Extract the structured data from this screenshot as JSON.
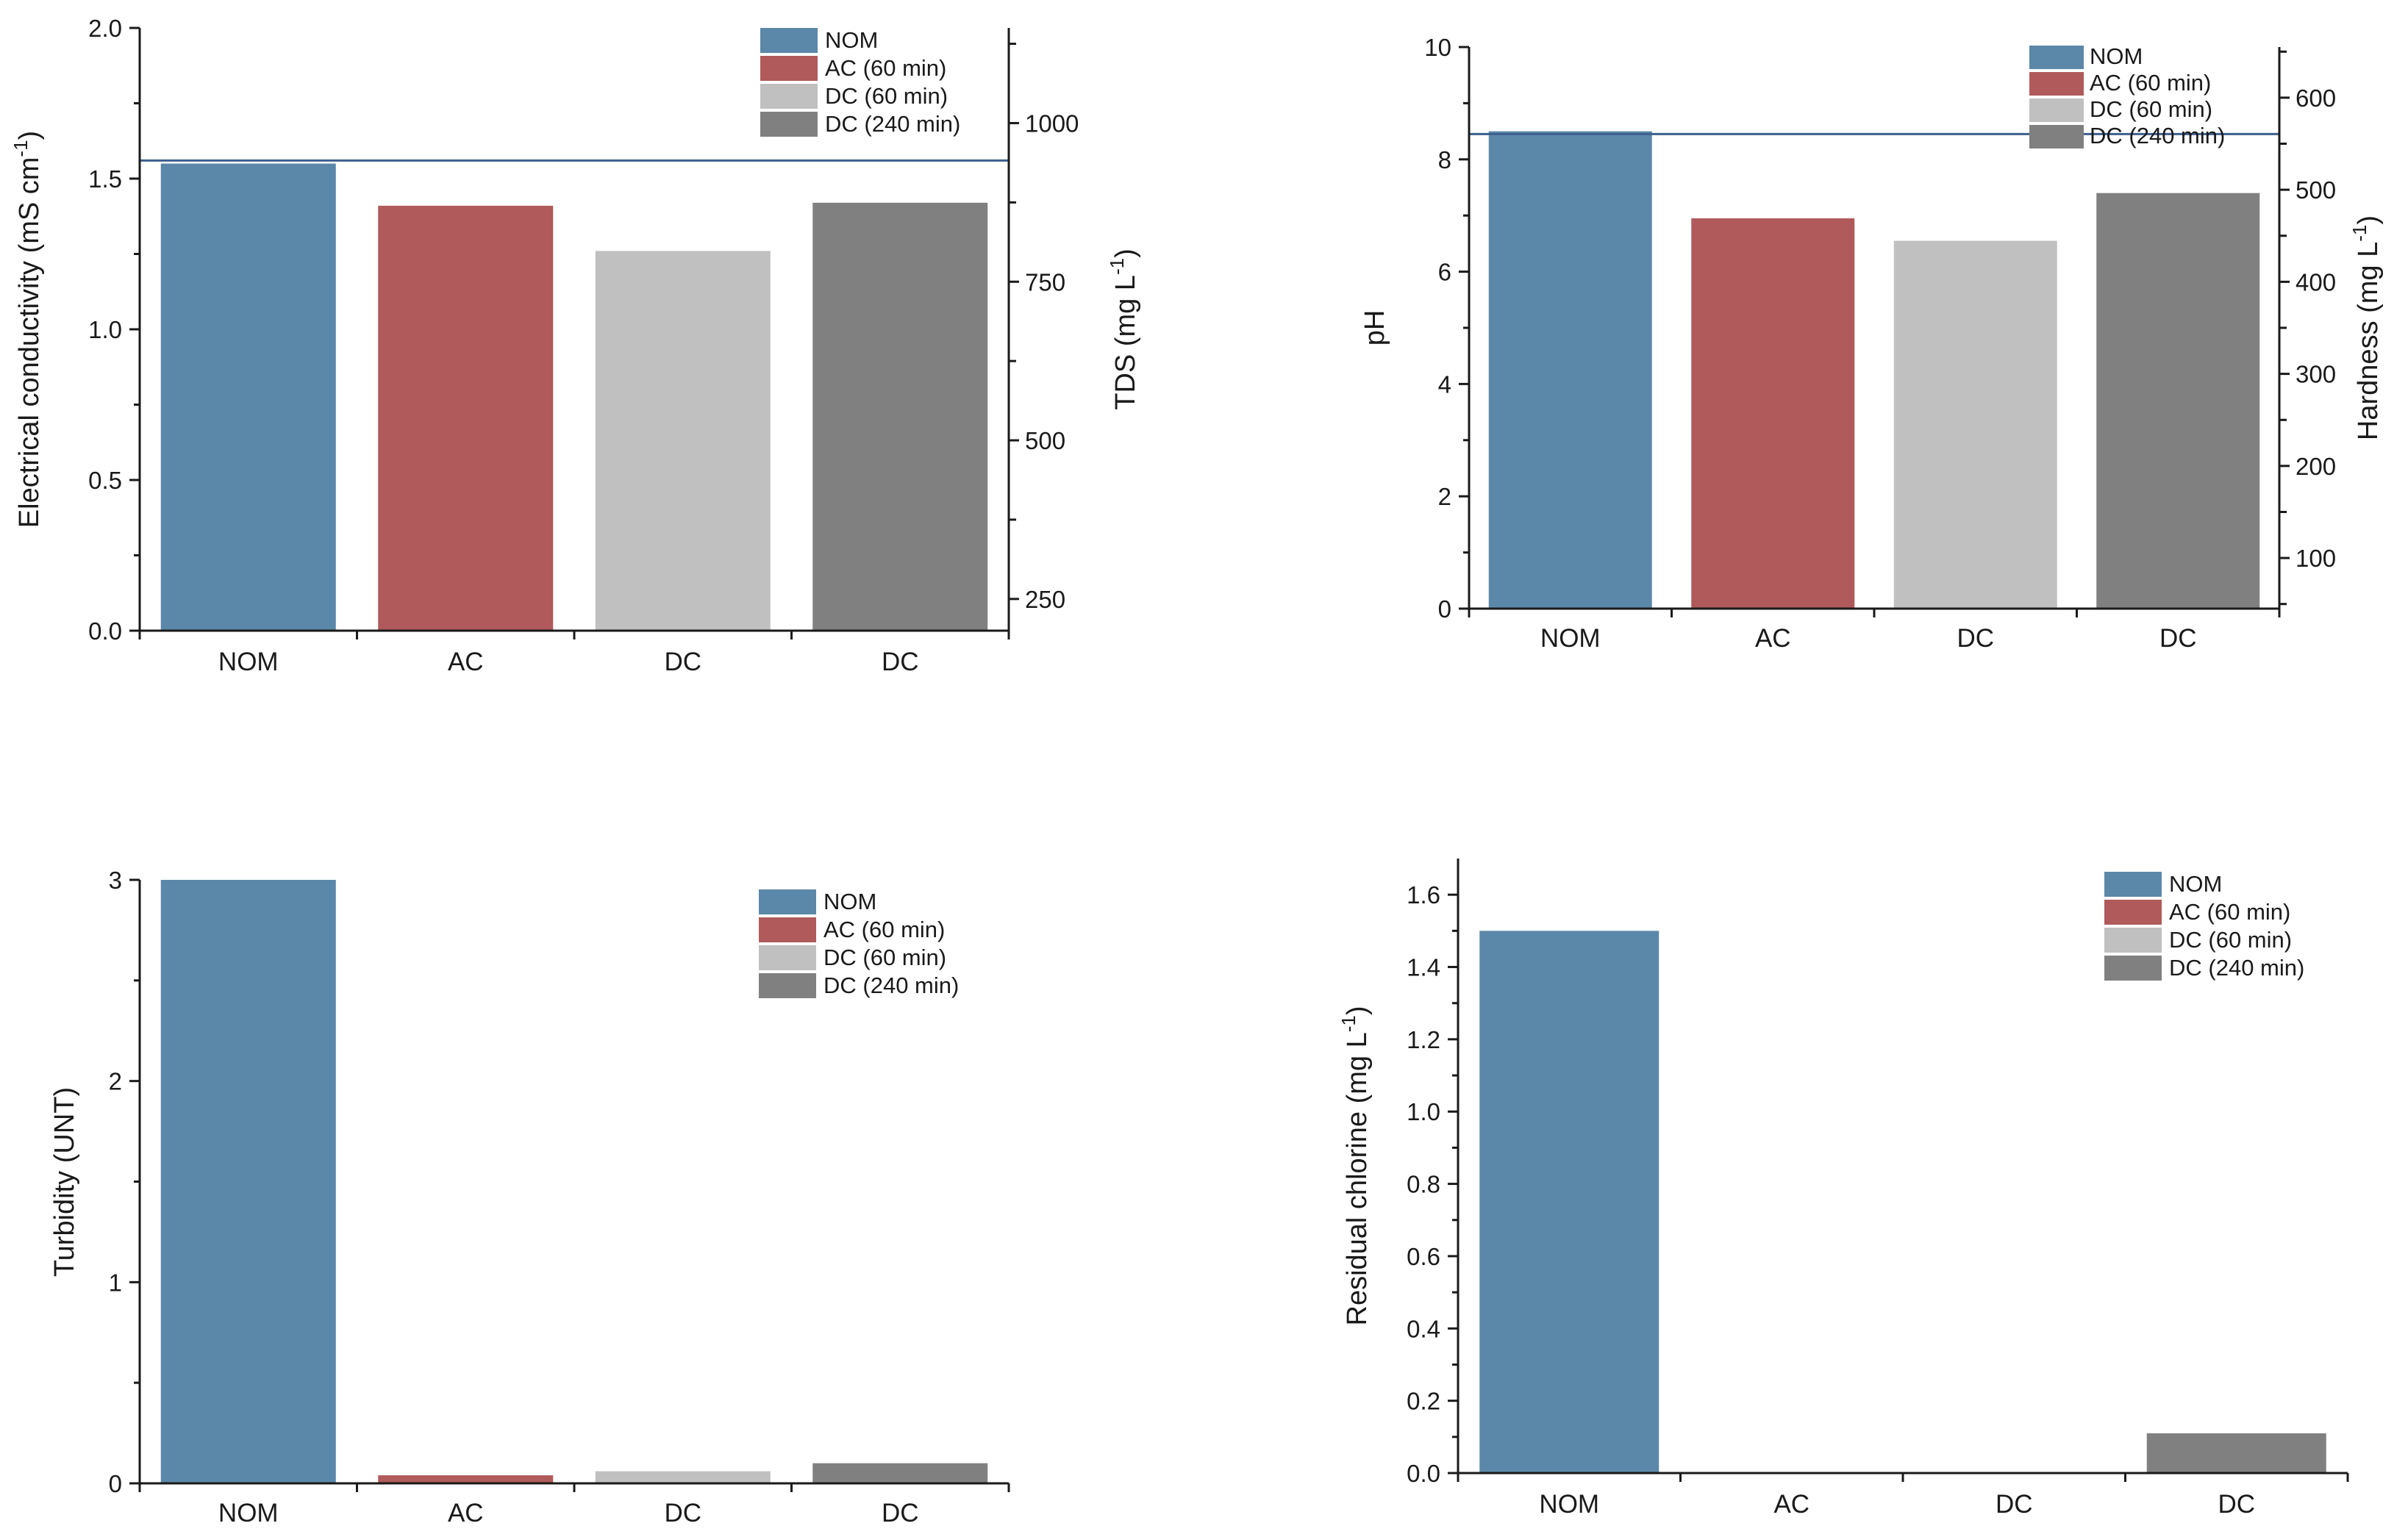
{
  "colors": {
    "NOM": "#5b88a8",
    "AC (60 min)": "#b05a5b",
    "DC (60 min)": "#c0c0c0",
    "DC (240 min)": "#808080",
    "reference_line": "#3d5f8f"
  },
  "legend": [
    "NOM",
    "AC (60 min)",
    "DC (60 min)",
    "DC (240 min)"
  ],
  "chart_data": [
    {
      "type": "bar",
      "categories": [
        "NOM",
        "AC",
        "DC",
        "DC"
      ],
      "values": [
        1.55,
        1.41,
        1.26,
        1.42
      ],
      "ylabel": "Electrical conductivity (mS cm",
      "ylabel_sup": "-1",
      "ylabel_close": ")",
      "ylim": [
        0,
        2.0
      ],
      "yticks": [
        0.0,
        0.5,
        1.0,
        1.5,
        2.0
      ],
      "yticklabels": [
        "0.0",
        "0.5",
        "1.0",
        "1.5",
        "2.0"
      ],
      "y2label": "TDS (mg L",
      "y2label_sup": "-1",
      "y2label_close": ")",
      "y2lim": [
        200,
        1150
      ],
      "y2ticks": [
        250,
        500,
        750,
        1000
      ],
      "y2ticklabels": [
        "250",
        "500",
        "750",
        "1000"
      ],
      "reference_line": 1.56,
      "grid": false,
      "legend_position": "top-right"
    },
    {
      "type": "bar",
      "categories": [
        "NOM",
        "AC",
        "DC",
        "DC"
      ],
      "values": [
        8.5,
        6.95,
        6.55,
        7.4
      ],
      "ylabel": "pH",
      "ylim": [
        0,
        10
      ],
      "yticks": [
        0,
        2,
        4,
        6,
        8,
        10
      ],
      "yticklabels": [
        "0",
        "2",
        "4",
        "6",
        "8",
        "10"
      ],
      "y2label": "Hardness (mg L",
      "y2label_sup": "-1",
      "y2label_close": ")",
      "y2lim": [
        45,
        655
      ],
      "y2ticks": [
        100,
        200,
        300,
        400,
        500,
        600
      ],
      "y2ticklabels": [
        "100",
        "200",
        "300",
        "400",
        "500",
        "600"
      ],
      "reference_line": 8.45,
      "grid": false,
      "legend_position": "top-right"
    },
    {
      "type": "bar",
      "categories": [
        "NOM",
        "AC",
        "DC",
        "DC"
      ],
      "values": [
        3.0,
        0.04,
        0.06,
        0.1
      ],
      "ylabel": "Turbidity (UNT)",
      "ylim": [
        0,
        3.0
      ],
      "yticks": [
        0,
        1,
        2,
        3
      ],
      "yticklabels": [
        "0",
        "1",
        "2",
        "3"
      ],
      "grid": false,
      "legend_position": "top-right"
    },
    {
      "type": "bar",
      "categories": [
        "NOM",
        "AC",
        "DC",
        "DC"
      ],
      "values": [
        1.5,
        0.0,
        0.0,
        0.11
      ],
      "ylabel": "Residual chlorine (mg L",
      "ylabel_sup": "-1",
      "ylabel_close": ")",
      "ylim": [
        0,
        1.7
      ],
      "yticks": [
        0.0,
        0.2,
        0.4,
        0.6,
        0.8,
        1.0,
        1.2,
        1.4,
        1.6
      ],
      "yticklabels": [
        "0.0",
        "0.2",
        "0.4",
        "0.6",
        "0.8",
        "1.0",
        "1.2",
        "1.4",
        "1.6"
      ],
      "grid": false,
      "legend_position": "top-right"
    }
  ]
}
